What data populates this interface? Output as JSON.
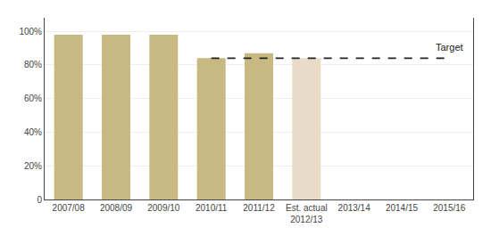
{
  "chart_data": {
    "type": "bar",
    "categories": [
      "2007/08",
      "2008/09",
      "2009/10",
      "2010/11",
      "2011/12",
      "Est. actual\n2012/13",
      "2013/14",
      "2014/15",
      "2015/16"
    ],
    "series": [
      {
        "type": "bar",
        "values": [
          98,
          98,
          98,
          84,
          87,
          84,
          null,
          null,
          null
        ],
        "colors": [
          "#c8b882",
          "#c8b882",
          "#c8b882",
          "#c8b882",
          "#c8b882",
          "#e8dcc8",
          null,
          null,
          null
        ]
      },
      {
        "type": "line",
        "values": [
          null,
          null,
          null,
          84,
          84,
          84,
          84,
          84,
          84
        ],
        "color": "#222222",
        "line_style": "dashed"
      }
    ],
    "annotations": [
      {
        "text": "Target",
        "x": "2015/16",
        "y": 84
      }
    ],
    "ylim": [
      0,
      108
    ],
    "yticks": [
      0,
      {
        "value": 20,
        "label": "20%"
      },
      {
        "value": 40,
        "label": "40%"
      },
      {
        "value": 60,
        "label": "60%"
      },
      {
        "value": 80,
        "label": "80%"
      },
      {
        "value": 100,
        "label": "100%"
      }
    ],
    "grid": true
  }
}
